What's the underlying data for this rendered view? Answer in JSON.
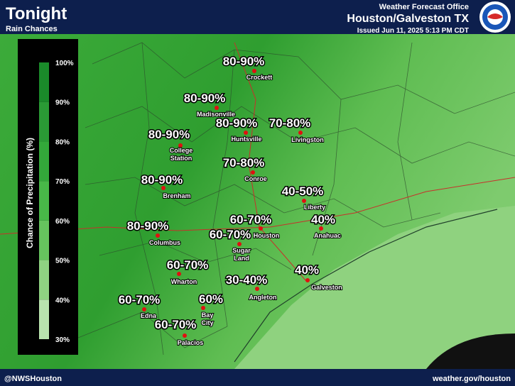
{
  "header": {
    "title": "Tonight",
    "subtitle": "Rain Chances",
    "office": "Weather Forecast Office",
    "location": "Houston/Galveston TX",
    "issued": "Issued Jun 11, 2025 5:13 PM CDT"
  },
  "legend": {
    "title": "Chance of Precipitation (%)",
    "ticks": [
      "100%",
      "90%",
      "80%",
      "70%",
      "60%",
      "50%",
      "40%",
      "30%"
    ]
  },
  "labels": [
    {
      "range": "80-90%",
      "city": [
        "Crockett"
      ]
    },
    {
      "range": "80-90%",
      "city": [
        "Madisonville"
      ]
    },
    {
      "range": "80-90%",
      "city": [
        "Huntsville"
      ]
    },
    {
      "range": "70-80%",
      "city": [
        "Livingston"
      ]
    },
    {
      "range": "80-90%",
      "city": [
        "College",
        "Station"
      ]
    },
    {
      "range": "70-80%",
      "city": [
        "Conroe"
      ]
    },
    {
      "range": "80-90%",
      "city": [
        "Brenham"
      ]
    },
    {
      "range": "40-50%",
      "city": [
        "Liberty"
      ]
    },
    {
      "range": "80-90%",
      "city": [
        "Columbus"
      ]
    },
    {
      "range": "60-70%",
      "city": [
        "Houston"
      ]
    },
    {
      "range": "40%",
      "city": [
        "Anahuac"
      ]
    },
    {
      "range": "60-70%",
      "city": [
        "Sugar",
        "Land"
      ]
    },
    {
      "range": "60-70%",
      "city": [
        "Wharton"
      ]
    },
    {
      "range": "30-40%",
      "city": [
        "Angleton"
      ]
    },
    {
      "range": "40%",
      "city": [
        "Galveston"
      ]
    },
    {
      "range": "60-70%",
      "city": [
        "Edna"
      ]
    },
    {
      "range": "60%",
      "city": [
        "Bay",
        "City"
      ]
    },
    {
      "range": "60-70%",
      "city": [
        "Palacios"
      ]
    }
  ],
  "footer": {
    "left": "@NWSHouston",
    "right": "weather.gov/houston"
  }
}
